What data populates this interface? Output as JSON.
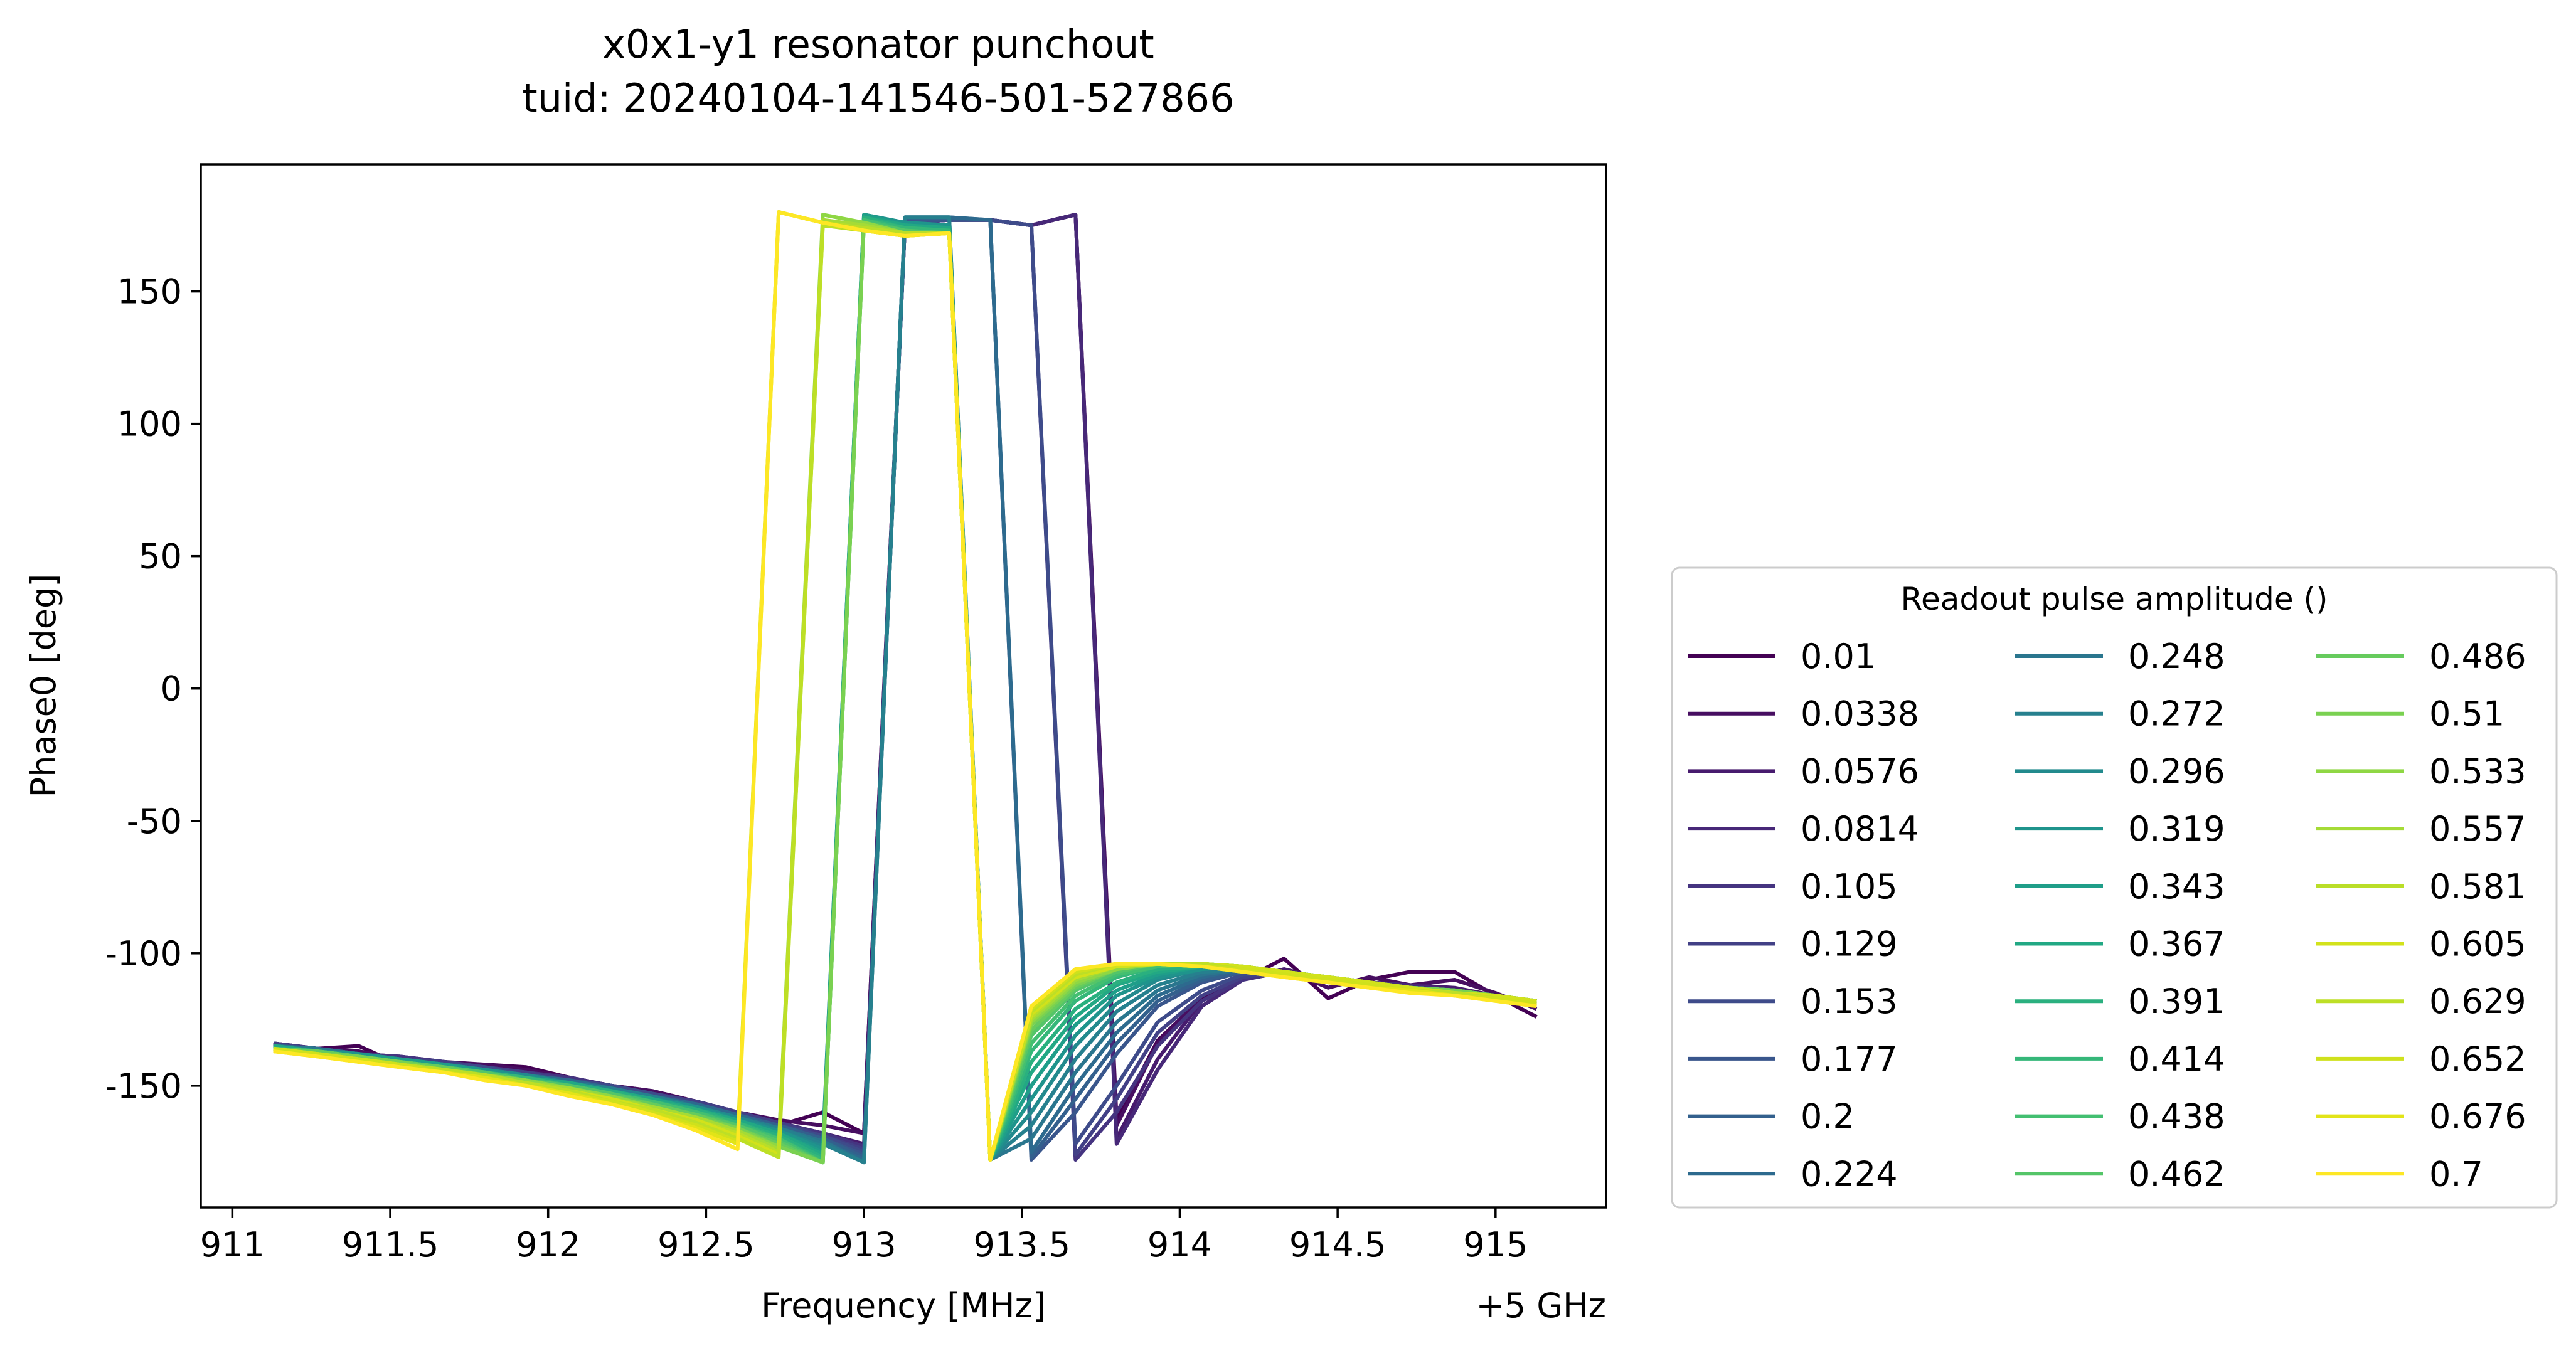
{
  "chart_data": {
    "type": "line",
    "title": "x0x1-y1 resonator punchout",
    "subtitle": "tuid: 20240104-141546-501-527866",
    "xlabel": "Frequency [MHz]",
    "ylabel": "Phase0 [deg]",
    "x_offset_label": "+5 GHz",
    "xlim": [
      910.9,
      915.35
    ],
    "ylim": [
      -196,
      198
    ],
    "x_ticks": [
      911,
      911.5,
      912,
      912.5,
      913,
      913.5,
      914,
      914.5,
      915
    ],
    "x_tick_labels": [
      "911",
      "911.5",
      "912",
      "912.5",
      "913",
      "913.5",
      "914",
      "914.5",
      "915"
    ],
    "y_ticks": [
      150,
      100,
      50,
      0,
      -50,
      -100,
      -150
    ],
    "y_tick_labels": [
      "150",
      "100",
      "50",
      "0",
      "-50",
      "-100",
      "-150"
    ],
    "grid": false,
    "legend": {
      "title": "Readout pulse amplitude ()",
      "placement": "outside-right-bottom",
      "columns": 3
    },
    "x": [
      911.13,
      911.27,
      911.4,
      911.53,
      911.67,
      911.8,
      911.93,
      912.07,
      912.2,
      912.33,
      912.47,
      912.6,
      912.73,
      912.87,
      913.0,
      913.13,
      913.27,
      913.4,
      913.53,
      913.67,
      913.8,
      913.93,
      914.07,
      914.2,
      914.33,
      914.47,
      914.6,
      914.73,
      914.87,
      915.0,
      915.13
    ],
    "series": [
      {
        "name": "0.01",
        "color": "#440154",
        "values": [
          -134,
          -136,
          -135,
          -142,
          -143,
          -142,
          -143,
          -147,
          -150,
          -152,
          -156,
          -160,
          -165,
          -160,
          -168,
          176,
          177,
          177,
          175,
          179,
          -163,
          -133,
          -117,
          -110,
          -102,
          -117,
          -110,
          -107,
          -107,
          -116,
          -124
        ]
      },
      {
        "name": "0.0338",
        "color": "#470e61",
        "values": [
          -134,
          -136,
          -137,
          -140,
          -141,
          -142,
          -144,
          -147,
          -150,
          -152,
          -156,
          -160,
          -163,
          -165,
          -168,
          176,
          177,
          177,
          175,
          179,
          -165,
          -134,
          -116,
          -110,
          -106,
          -113,
          -109,
          -112,
          -110,
          -115,
          -121
        ]
      },
      {
        "name": "0.0576",
        "color": "#471b6e",
        "values": [
          -134,
          -136,
          -138,
          -139,
          -141,
          -143,
          -145,
          -147,
          -150,
          -153,
          -156,
          -160,
          -164,
          -168,
          -172,
          176,
          177,
          177,
          175,
          179,
          -170,
          -140,
          -118,
          -110,
          -106,
          -110,
          -111,
          -112,
          -113,
          -116,
          -119
        ]
      },
      {
        "name": "0.0814",
        "color": "#472878",
        "values": [
          -134,
          -136,
          -138,
          -139,
          -141,
          -143,
          -145,
          -147,
          -150,
          -153,
          -156,
          -160,
          -164,
          -168,
          -173,
          176,
          177,
          177,
          175,
          179,
          -172,
          -144,
          -120,
          -110,
          -107,
          -109,
          -111,
          -112,
          -114,
          -116,
          -118
        ]
      },
      {
        "name": "0.105",
        "color": "#453480",
        "values": [
          -134,
          -136,
          -138,
          -139,
          -141,
          -143,
          -145,
          -147,
          -150,
          -153,
          -156,
          -160,
          -164,
          -168,
          -173,
          176,
          177,
          177,
          175,
          -178,
          -160,
          -135,
          -118,
          -110,
          -107,
          -109,
          -111,
          -113,
          -114,
          -116,
          -118
        ]
      },
      {
        "name": "0.129",
        "color": "#424086",
        "values": [
          -134,
          -136,
          -138,
          -140,
          -141,
          -143,
          -145,
          -148,
          -150,
          -153,
          -156,
          -160,
          -164,
          -169,
          -174,
          176,
          177,
          177,
          175,
          -176,
          -155,
          -130,
          -116,
          -109,
          -107,
          -109,
          -111,
          -113,
          -114,
          -116,
          -118
        ]
      },
      {
        "name": "0.153",
        "color": "#3e4b8a",
        "values": [
          -135,
          -136,
          -138,
          -140,
          -142,
          -143,
          -146,
          -148,
          -150,
          -153,
          -157,
          -161,
          -165,
          -169,
          -175,
          176,
          177,
          177,
          175,
          -172,
          -150,
          -126,
          -114,
          -108,
          -107,
          -109,
          -111,
          -113,
          -114,
          -116,
          -118
        ]
      },
      {
        "name": "0.177",
        "color": "#39568c",
        "values": [
          -135,
          -136,
          -138,
          -140,
          -142,
          -144,
          -146,
          -148,
          -151,
          -154,
          -157,
          -161,
          -165,
          -170,
          -176,
          177,
          177,
          177,
          -178,
          -160,
          -138,
          -120,
          -111,
          -107,
          -107,
          -109,
          -111,
          -113,
          -114,
          -116,
          -118
        ]
      },
      {
        "name": "0.2",
        "color": "#33608d",
        "values": [
          -135,
          -136,
          -138,
          -140,
          -142,
          -144,
          -146,
          -148,
          -151,
          -154,
          -157,
          -161,
          -165,
          -170,
          -177,
          178,
          178,
          177,
          -177,
          -155,
          -134,
          -118,
          -110,
          -107,
          -107,
          -109,
          -111,
          -113,
          -114,
          -116,
          -118
        ]
      },
      {
        "name": "0.224",
        "color": "#2d6a8e",
        "values": [
          -135,
          -136,
          -138,
          -140,
          -142,
          -144,
          -146,
          -148,
          -151,
          -154,
          -157,
          -161,
          -166,
          -171,
          -178,
          178,
          178,
          177,
          -175,
          -150,
          -130,
          -116,
          -109,
          -106,
          -107,
          -109,
          -111,
          -113,
          -114,
          -116,
          -118
        ]
      },
      {
        "name": "0.248",
        "color": "#2a768e",
        "values": [
          -135,
          -136,
          -138,
          -140,
          -142,
          -144,
          -146,
          -149,
          -151,
          -154,
          -158,
          -162,
          -166,
          -171,
          -179,
          178,
          178,
          -178,
          -170,
          -145,
          -126,
          -114,
          -108,
          -106,
          -107,
          -109,
          -111,
          -113,
          -114,
          -116,
          -118
        ]
      },
      {
        "name": "0.272",
        "color": "#26808e",
        "values": [
          -135,
          -137,
          -138,
          -140,
          -142,
          -144,
          -146,
          -149,
          -151,
          -154,
          -158,
          -162,
          -166,
          -172,
          -179,
          178,
          178,
          -178,
          -165,
          -140,
          -122,
          -112,
          -107,
          -106,
          -107,
          -109,
          -111,
          -113,
          -114,
          -116,
          -118
        ]
      },
      {
        "name": "0.296",
        "color": "#228a8d",
        "values": [
          -135,
          -137,
          -138,
          -140,
          -142,
          -144,
          -146,
          -149,
          -152,
          -155,
          -158,
          -162,
          -167,
          -173,
          179,
          176,
          175,
          -178,
          -160,
          -135,
          -119,
          -110,
          -106,
          -105,
          -107,
          -109,
          -111,
          -113,
          -114,
          -116,
          -118
        ]
      },
      {
        "name": "0.319",
        "color": "#1f948c",
        "values": [
          -135,
          -137,
          -138,
          -140,
          -142,
          -144,
          -147,
          -149,
          -152,
          -155,
          -158,
          -163,
          -167,
          -174,
          179,
          176,
          175,
          -178,
          -155,
          -131,
          -116,
          -109,
          -106,
          -105,
          -107,
          -109,
          -111,
          -113,
          -114,
          -116,
          -118
        ]
      },
      {
        "name": "0.343",
        "color": "#1f9e89",
        "values": [
          -135,
          -137,
          -139,
          -140,
          -142,
          -145,
          -147,
          -149,
          -152,
          -155,
          -159,
          -163,
          -168,
          -175,
          179,
          175,
          174,
          -178,
          -150,
          -127,
          -114,
          -108,
          -105,
          -105,
          -107,
          -109,
          -111,
          -113,
          -114,
          -116,
          -118
        ]
      },
      {
        "name": "0.367",
        "color": "#22a884",
        "values": [
          -135,
          -137,
          -139,
          -141,
          -143,
          -145,
          -147,
          -149,
          -152,
          -155,
          -159,
          -163,
          -168,
          -176,
          178,
          175,
          174,
          -178,
          -145,
          -124,
          -112,
          -107,
          -105,
          -105,
          -107,
          -109,
          -111,
          -113,
          -114,
          -116,
          -118
        ]
      },
      {
        "name": "0.391",
        "color": "#2ab07f",
        "values": [
          -136,
          -137,
          -139,
          -141,
          -143,
          -145,
          -147,
          -150,
          -152,
          -156,
          -159,
          -164,
          -169,
          -177,
          178,
          174,
          173,
          -178,
          -141,
          -121,
          -111,
          -106,
          -105,
          -105,
          -107,
          -109,
          -111,
          -113,
          -114,
          -116,
          -118
        ]
      },
      {
        "name": "0.414",
        "color": "#35b779",
        "values": [
          -136,
          -137,
          -139,
          -141,
          -143,
          -145,
          -147,
          -150,
          -153,
          -156,
          -160,
          -164,
          -170,
          -178,
          177,
          174,
          173,
          -178,
          -137,
          -118,
          -109,
          -105,
          -104,
          -105,
          -107,
          -109,
          -111,
          -113,
          -114,
          -116,
          -118
        ]
      },
      {
        "name": "0.438",
        "color": "#43bf71",
        "values": [
          -136,
          -137,
          -139,
          -141,
          -143,
          -145,
          -148,
          -150,
          -153,
          -156,
          -160,
          -165,
          -170,
          -179,
          177,
          173,
          172,
          -178,
          -134,
          -116,
          -108,
          -105,
          -104,
          -105,
          -107,
          -109,
          -111,
          -113,
          -114,
          -116,
          -118
        ]
      },
      {
        "name": "0.462",
        "color": "#54c568",
        "values": [
          -136,
          -137,
          -139,
          -141,
          -143,
          -145,
          -148,
          -150,
          -153,
          -157,
          -161,
          -165,
          -171,
          -179,
          176,
          173,
          172,
          -178,
          -131,
          -114,
          -107,
          -104,
          -104,
          -105,
          -107,
          -109,
          -111,
          -113,
          -114,
          -116,
          -118
        ]
      },
      {
        "name": "0.486",
        "color": "#66cb5d",
        "values": [
          -136,
          -137,
          -139,
          -141,
          -143,
          -146,
          -148,
          -151,
          -154,
          -157,
          -161,
          -166,
          -172,
          -179,
          176,
          172,
          172,
          -178,
          -129,
          -113,
          -106,
          -104,
          -104,
          -105,
          -107,
          -109,
          -111,
          -113,
          -114,
          -116,
          -118
        ]
      },
      {
        "name": "0.51",
        "color": "#7ad151",
        "values": [
          -136,
          -138,
          -139,
          -141,
          -144,
          -146,
          -148,
          -151,
          -154,
          -158,
          -162,
          -166,
          -173,
          -179,
          176,
          172,
          172,
          -178,
          -127,
          -112,
          -106,
          -104,
          -104,
          -105,
          -107,
          -109,
          -111,
          -113,
          -114,
          -116,
          -118
        ]
      },
      {
        "name": "0.533",
        "color": "#8fd744",
        "values": [
          -136,
          -138,
          -140,
          -142,
          -144,
          -146,
          -148,
          -151,
          -154,
          -158,
          -162,
          -167,
          -173,
          179,
          176,
          172,
          172,
          -178,
          -126,
          -111,
          -106,
          -104,
          -104,
          -105,
          -107,
          -109,
          -111,
          -113,
          -115,
          -116,
          -118
        ]
      },
      {
        "name": "0.557",
        "color": "#a5db36",
        "values": [
          -136,
          -138,
          -140,
          -142,
          -144,
          -146,
          -149,
          -151,
          -155,
          -158,
          -162,
          -167,
          -174,
          177,
          175,
          172,
          172,
          -178,
          -125,
          -110,
          -105,
          -104,
          -104,
          -105,
          -107,
          -109,
          -111,
          -113,
          -115,
          -116,
          -118
        ]
      },
      {
        "name": "0.581",
        "color": "#bade28",
        "values": [
          -136,
          -138,
          -140,
          -142,
          -144,
          -146,
          -149,
          -152,
          -155,
          -159,
          -163,
          -168,
          -175,
          176,
          174,
          172,
          172,
          -178,
          -124,
          -109,
          -105,
          -104,
          -104,
          -105,
          -107,
          -109,
          -111,
          -113,
          -115,
          -116,
          -118
        ]
      },
      {
        "name": "0.605",
        "color": "#d2e21b",
        "values": [
          -136,
          -138,
          -140,
          -142,
          -144,
          -147,
          -149,
          -152,
          -155,
          -159,
          -163,
          -169,
          -176,
          175,
          173,
          171,
          172,
          -178,
          -123,
          -109,
          -105,
          -104,
          -104,
          -105,
          -107,
          -109,
          -111,
          -113,
          -115,
          -116,
          -118
        ]
      },
      {
        "name": "0.629",
        "color": "#bddf26",
        "values": [
          -137,
          -138,
          -140,
          -142,
          -144,
          -147,
          -149,
          -152,
          -156,
          -159,
          -164,
          -170,
          -177,
          175,
          173,
          171,
          172,
          -178,
          -122,
          -108,
          -104,
          -104,
          -104,
          -106,
          -108,
          -110,
          -112,
          -114,
          -115,
          -117,
          -119
        ]
      },
      {
        "name": "0.652",
        "color": "#cfe11c",
        "values": [
          -137,
          -138,
          -140,
          -142,
          -145,
          -147,
          -150,
          -153,
          -156,
          -160,
          -165,
          -171,
          180,
          176,
          173,
          171,
          172,
          -178,
          -121,
          -107,
          -104,
          -104,
          -105,
          -106,
          -108,
          -110,
          -112,
          -114,
          -116,
          -117,
          -119
        ]
      },
      {
        "name": "0.676",
        "color": "#e2e418",
        "values": [
          -137,
          -139,
          -141,
          -143,
          -145,
          -147,
          -150,
          -153,
          -157,
          -161,
          -166,
          -172,
          180,
          176,
          173,
          171,
          172,
          -178,
          -120,
          -106,
          -104,
          -104,
          -105,
          -107,
          -109,
          -111,
          -113,
          -114,
          -116,
          -118,
          -120
        ]
      },
      {
        "name": "0.7",
        "color": "#fde725",
        "values": [
          -137,
          -139,
          -141,
          -143,
          -145,
          -148,
          -150,
          -154,
          -157,
          -161,
          -167,
          -174,
          180,
          176,
          173,
          171,
          172,
          -178,
          -120,
          -106,
          -104,
          -104,
          -105,
          -107,
          -109,
          -111,
          -113,
          -115,
          -116,
          -118,
          -120
        ]
      }
    ]
  }
}
